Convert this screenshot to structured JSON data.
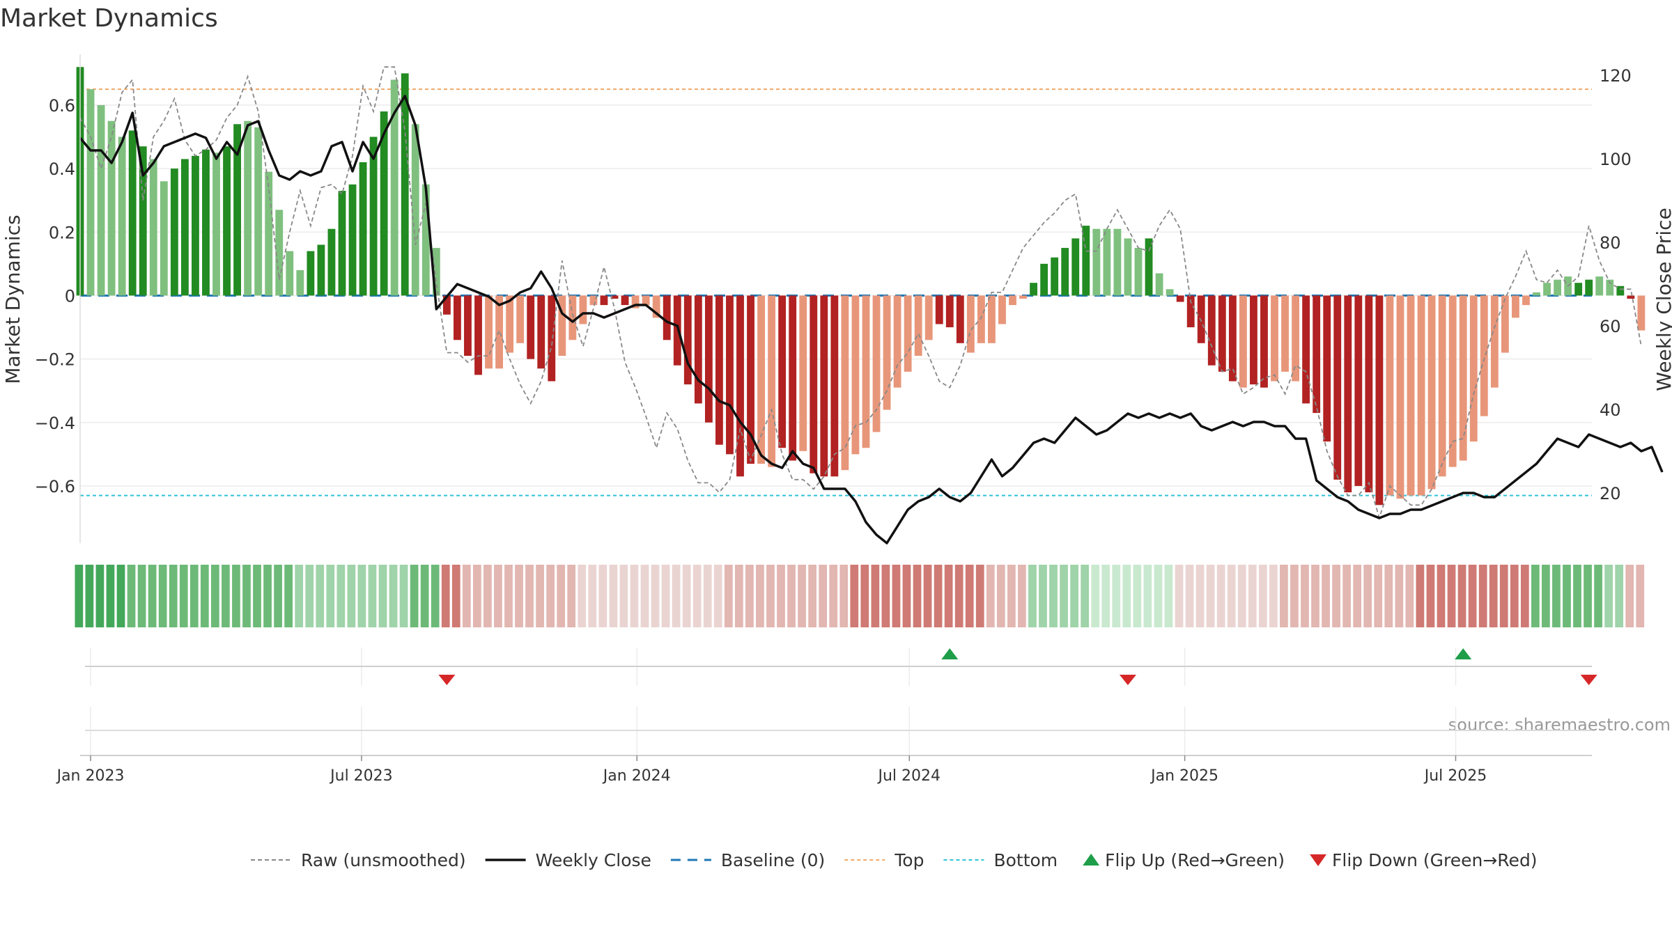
{
  "chart_data": {
    "type": "bar",
    "title": "Market Dynamics",
    "ylabel_left": "Market Dynamics",
    "ylabel_right": "Weekly Close Price",
    "source": "source: sharemaestro.com",
    "ylim_left": [
      -0.78,
      0.76
    ],
    "ylim_right": [
      8,
      125
    ],
    "yticks_left": [
      0.6,
      0.4,
      0.2,
      0,
      -0.2,
      -0.4,
      -0.6
    ],
    "yticks_left_labels": [
      "0.6",
      "0.4",
      "0.2",
      "0",
      "−0.2",
      "−0.4",
      "−0.6"
    ],
    "yticks_right": [
      120,
      100,
      80,
      60,
      40,
      20
    ],
    "xlim": [
      "2022-12-25",
      "2025-09-30"
    ],
    "xticks": [
      "2023-01-01",
      "2023-07-01",
      "2024-01-01",
      "2024-07-01",
      "2025-01-01",
      "2025-07-01"
    ],
    "xtick_labels": [
      "Jan 2023",
      "Jul 2023",
      "Jan 2024",
      "Jul 2024",
      "Jan 2025",
      "Jul 2025"
    ],
    "start_date": "2022-12-25",
    "top_level": 0.65,
    "bottom_level": -0.63,
    "grid": true,
    "legend_position": "bottom",
    "colors": {
      "up_strong": "#228b22",
      "up_weak": "#7fc07f",
      "down_strong": "#b22222",
      "down_weak": "#e8967a",
      "baseline": "#1f77b4",
      "top": "#f0a868",
      "bottom": "#2ec4d6",
      "weekly_close": "#111111",
      "raw": "#888888",
      "flip_up": "#1e9e48",
      "flip_down": "#d62728"
    },
    "bars": [
      0.72,
      0.65,
      0.6,
      0.55,
      0.5,
      0.52,
      0.47,
      0.43,
      0.36,
      0.4,
      0.43,
      0.44,
      0.46,
      0.45,
      0.47,
      0.54,
      0.55,
      0.53,
      0.39,
      0.27,
      0.14,
      0.08,
      0.14,
      0.16,
      0.21,
      0.33,
      0.35,
      0.42,
      0.5,
      0.58,
      0.68,
      0.7,
      0.54,
      0.35,
      0.15,
      -0.06,
      -0.14,
      -0.19,
      -0.25,
      -0.23,
      -0.23,
      -0.18,
      -0.15,
      -0.2,
      -0.23,
      -0.27,
      -0.19,
      -0.14,
      -0.09,
      -0.03,
      -0.03,
      -0.01,
      -0.03,
      -0.04,
      -0.03,
      -0.07,
      -0.14,
      -0.22,
      -0.28,
      -0.34,
      -0.4,
      -0.47,
      -0.5,
      -0.57,
      -0.53,
      -0.53,
      -0.54,
      -0.48,
      -0.52,
      -0.49,
      -0.56,
      -0.57,
      -0.57,
      -0.55,
      -0.5,
      -0.48,
      -0.43,
      -0.36,
      -0.29,
      -0.24,
      -0.19,
      -0.14,
      -0.09,
      -0.1,
      -0.15,
      -0.18,
      -0.15,
      -0.15,
      -0.09,
      -0.03,
      -0.01,
      0.04,
      0.1,
      0.12,
      0.15,
      0.18,
      0.22,
      0.21,
      0.21,
      0.21,
      0.18,
      0.15,
      0.18,
      0.07,
      0.02,
      -0.02,
      -0.1,
      -0.15,
      -0.22,
      -0.24,
      -0.27,
      -0.29,
      -0.28,
      -0.29,
      -0.27,
      -0.24,
      -0.27,
      -0.34,
      -0.37,
      -0.46,
      -0.58,
      -0.62,
      -0.6,
      -0.62,
      -0.66,
      -0.63,
      -0.64,
      -0.63,
      -0.63,
      -0.61,
      -0.57,
      -0.54,
      -0.52,
      -0.46,
      -0.38,
      -0.29,
      -0.18,
      -0.07,
      -0.03,
      0.01,
      0.04,
      0.05,
      0.06,
      0.04,
      0.05,
      0.06,
      0.05,
      0.03,
      -0.01,
      -0.11
    ],
    "bar_shades": [
      2,
      1,
      1,
      1,
      1,
      2,
      2,
      1,
      1,
      2,
      2,
      2,
      2,
      1,
      2,
      2,
      1,
      1,
      1,
      1,
      1,
      1,
      2,
      2,
      2,
      2,
      2,
      2,
      2,
      2,
      1,
      2,
      1,
      1,
      1,
      2,
      2,
      2,
      2,
      1,
      1,
      1,
      1,
      2,
      2,
      2,
      1,
      1,
      1,
      1,
      2,
      2,
      2,
      1,
      1,
      1,
      2,
      2,
      2,
      2,
      2,
      2,
      2,
      2,
      2,
      1,
      1,
      2,
      2,
      1,
      2,
      2,
      2,
      1,
      1,
      1,
      1,
      1,
      1,
      1,
      1,
      1,
      2,
      2,
      2,
      1,
      1,
      1,
      1,
      1,
      1,
      2,
      2,
      2,
      2,
      2,
      2,
      1,
      1,
      1,
      1,
      1,
      2,
      1,
      1,
      2,
      2,
      2,
      2,
      2,
      2,
      1,
      2,
      2,
      1,
      1,
      1,
      2,
      2,
      2,
      2,
      2,
      2,
      2,
      2,
      1,
      1,
      1,
      1,
      1,
      1,
      1,
      1,
      1,
      1,
      1,
      1,
      1,
      1,
      1,
      1,
      1,
      1,
      2,
      2,
      1,
      1,
      2,
      2,
      1,
      1,
      2
    ],
    "weekly_close": [
      105,
      102,
      102,
      99,
      104,
      111,
      96,
      99,
      103,
      104,
      105,
      106,
      105,
      100,
      104,
      101,
      108,
      109,
      102,
      96,
      95,
      97,
      96,
      97,
      103,
      104,
      97,
      104,
      100,
      106,
      111,
      115,
      108,
      93,
      64,
      67,
      70,
      69,
      68,
      67,
      65,
      66,
      68,
      69,
      73,
      69,
      63,
      61,
      63,
      63,
      62,
      63,
      64,
      65,
      65,
      63,
      61,
      60,
      51,
      47,
      45,
      42,
      41,
      37,
      34,
      29,
      27,
      26,
      30,
      27,
      26,
      21,
      21,
      21,
      18,
      13,
      10,
      8,
      12,
      16,
      18,
      19,
      21,
      19,
      18,
      20,
      24,
      28,
      24,
      26,
      29,
      32,
      33,
      32,
      35,
      38,
      36,
      34,
      35,
      37,
      39,
      38,
      39,
      38,
      39,
      38,
      39,
      36,
      35,
      36,
      37,
      36,
      37,
      37,
      36,
      36,
      33,
      33,
      23,
      21,
      19,
      18,
      16,
      15,
      14,
      15,
      15,
      16,
      16,
      17,
      18,
      19,
      20,
      20,
      19,
      19,
      21,
      23,
      25,
      27,
      30,
      33,
      32,
      31,
      34,
      33,
      32,
      31,
      32,
      30,
      31,
      25
    ],
    "raw_series": [
      0.56,
      0.5,
      0.4,
      0.5,
      0.64,
      0.68,
      0.3,
      0.5,
      0.55,
      0.62,
      0.49,
      0.44,
      0.46,
      0.49,
      0.56,
      0.6,
      0.69,
      0.58,
      0.34,
      0.05,
      0.2,
      0.33,
      0.22,
      0.34,
      0.35,
      0.32,
      0.44,
      0.66,
      0.58,
      0.72,
      0.72,
      0.52,
      0.16,
      0.29,
      0.04,
      -0.18,
      -0.18,
      -0.21,
      -0.19,
      -0.19,
      -0.11,
      -0.2,
      -0.28,
      -0.34,
      -0.27,
      -0.16,
      0.11,
      -0.06,
      -0.16,
      -0.04,
      0.09,
      -0.04,
      -0.21,
      -0.29,
      -0.38,
      -0.48,
      -0.37,
      -0.42,
      -0.52,
      -0.59,
      -0.59,
      -0.62,
      -0.58,
      -0.42,
      -0.52,
      -0.44,
      -0.36,
      -0.5,
      -0.58,
      -0.58,
      -0.61,
      -0.57,
      -0.5,
      -0.48,
      -0.41,
      -0.4,
      -0.36,
      -0.3,
      -0.22,
      -0.18,
      -0.12,
      -0.19,
      -0.27,
      -0.29,
      -0.22,
      -0.11,
      -0.07,
      0.01,
      0.01,
      0.08,
      0.15,
      0.19,
      0.23,
      0.26,
      0.3,
      0.32,
      0.14,
      0.14,
      0.21,
      0.27,
      0.21,
      0.15,
      0.14,
      0.22,
      0.27,
      0.21,
      -0.02,
      -0.08,
      -0.16,
      -0.24,
      -0.23,
      -0.31,
      -0.29,
      -0.26,
      -0.25,
      -0.31,
      -0.22,
      -0.24,
      -0.35,
      -0.49,
      -0.57,
      -0.63,
      -0.63,
      -0.59,
      -0.7,
      -0.6,
      -0.63,
      -0.66,
      -0.66,
      -0.61,
      -0.53,
      -0.46,
      -0.45,
      -0.31,
      -0.2,
      -0.1,
      -0.01,
      0.06,
      0.14,
      0.05,
      0.04,
      0.08,
      0.03,
      0.06,
      0.22,
      0.11,
      0.04,
      0.02,
      0.02,
      -0.16
    ],
    "band_levels": [
      4,
      4,
      4,
      4,
      4,
      3,
      3,
      3,
      3,
      3,
      3,
      3,
      3,
      3,
      3,
      3,
      3,
      3,
      3,
      3,
      3,
      2,
      2,
      2,
      2,
      2,
      2,
      2,
      2,
      2,
      2,
      2,
      3,
      3,
      3,
      3,
      3,
      2,
      2,
      2,
      2,
      2,
      2,
      2,
      2,
      2,
      2,
      2,
      1,
      1,
      1,
      1,
      1,
      1,
      1,
      1,
      1,
      1,
      1,
      1,
      1,
      1,
      2,
      2,
      2,
      2,
      2,
      2,
      2,
      2,
      2,
      2,
      2,
      2,
      3,
      3,
      3,
      3,
      3,
      3,
      3,
      3,
      3,
      3,
      3,
      3,
      3,
      2,
      2,
      2,
      2,
      2,
      2,
      2,
      2,
      2,
      2,
      1,
      1,
      1,
      1,
      1,
      1,
      1,
      1,
      1,
      1,
      1,
      1,
      1,
      1,
      1,
      1,
      1,
      1,
      2,
      2,
      2,
      2,
      2,
      2,
      2,
      2,
      2,
      2,
      2,
      2,
      2,
      3,
      3,
      3,
      3,
      3,
      3,
      3,
      3,
      3,
      3,
      3,
      3,
      3,
      3,
      3,
      3,
      3,
      3,
      2,
      2,
      2,
      2,
      2,
      2,
      2,
      1,
      1,
      1,
      1,
      1,
      1,
      1,
      1,
      1,
      1,
      1,
      1,
      1
    ],
    "flips": [
      {
        "date": "2023-08-27",
        "direction": "down"
      },
      {
        "date": "2024-07-28",
        "direction": "up"
      },
      {
        "date": "2024-11-24",
        "direction": "down"
      },
      {
        "date": "2025-07-06",
        "direction": "up"
      },
      {
        "date": "2025-09-28",
        "direction": "down"
      }
    ],
    "legend": [
      {
        "label": "Raw (unsmoothed)",
        "style": "raw"
      },
      {
        "label": "Weekly Close",
        "style": "close"
      },
      {
        "label": "Baseline (0)",
        "style": "baseline"
      },
      {
        "label": "Top",
        "style": "top"
      },
      {
        "label": "Bottom",
        "style": "bottom"
      },
      {
        "label": "Flip Up (Red→Green)",
        "style": "flip_up"
      },
      {
        "label": "Flip Down (Green→Red)",
        "style": "flip_down"
      }
    ]
  }
}
